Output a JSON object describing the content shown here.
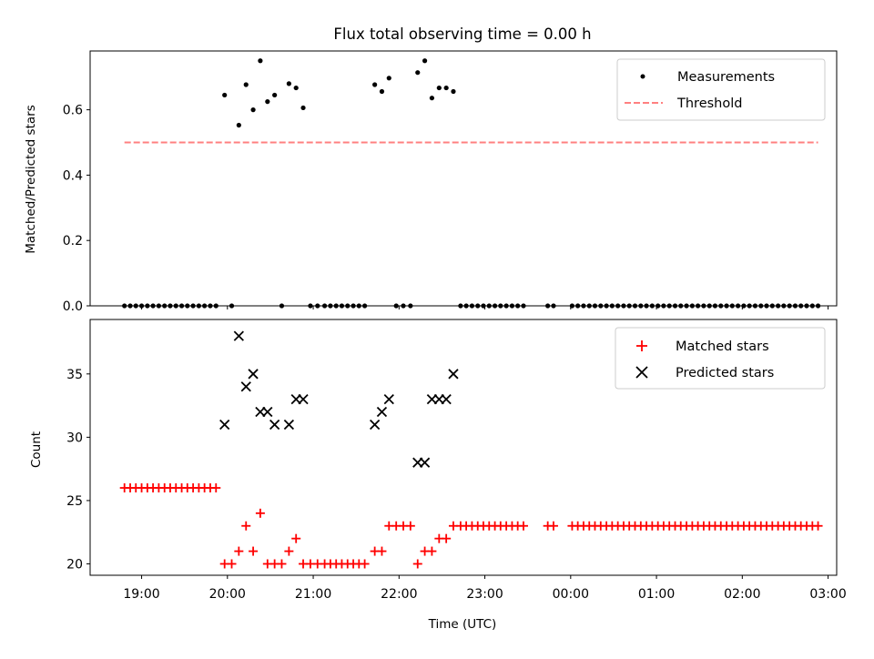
{
  "chart_data": [
    {
      "type": "scatter",
      "title": "Flux total observing time = 0.00 h",
      "ylabel": "Matched/Predicted stars",
      "ylim": [
        0,
        0.78
      ],
      "yticks": [
        0.0,
        0.2,
        0.4,
        0.6
      ],
      "ytick_labels": [
        "0.0",
        "0.2",
        "0.4",
        "0.6"
      ],
      "xlim": [
        -0.6,
        8.1
      ],
      "xticks": [
        0,
        1,
        2,
        3,
        4,
        5,
        6,
        7,
        8
      ],
      "legend": {
        "position": "top-right",
        "entries": [
          {
            "label": "Measurements",
            "marker": "dot",
            "color": "#000000"
          },
          {
            "label": "Threshold",
            "marker": "dashed-line",
            "color": "#ff8080"
          }
        ]
      },
      "series": [
        {
          "name": "Measurements",
          "color": "#000000",
          "marker": "dot",
          "points": [
            [
              -0.2,
              0
            ],
            [
              -0.133,
              0
            ],
            [
              -0.067,
              0
            ],
            [
              0,
              0
            ],
            [
              0.067,
              0
            ],
            [
              0.133,
              0
            ],
            [
              0.2,
              0
            ],
            [
              0.267,
              0
            ],
            [
              0.333,
              0
            ],
            [
              0.4,
              0
            ],
            [
              0.467,
              0
            ],
            [
              0.533,
              0
            ],
            [
              0.6,
              0
            ],
            [
              0.667,
              0
            ],
            [
              0.733,
              0
            ],
            [
              0.8,
              0
            ],
            [
              0.867,
              0
            ],
            [
              0.967,
              0.645
            ],
            [
              1.05,
              0
            ],
            [
              1.133,
              0.553
            ],
            [
              1.217,
              0.677
            ],
            [
              1.3,
              0.6
            ],
            [
              1.383,
              0.75
            ],
            [
              1.467,
              0.625
            ],
            [
              1.55,
              0.645
            ],
            [
              1.633,
              0
            ],
            [
              1.717,
              0.68
            ],
            [
              1.8,
              0.667
            ],
            [
              1.883,
              0.606
            ],
            [
              1.967,
              0
            ],
            [
              2.05,
              0
            ],
            [
              2.133,
              0
            ],
            [
              2.2,
              0
            ],
            [
              2.267,
              0
            ],
            [
              2.333,
              0
            ],
            [
              2.4,
              0
            ],
            [
              2.467,
              0
            ],
            [
              2.533,
              0
            ],
            [
              2.6,
              0
            ],
            [
              2.717,
              0.677
            ],
            [
              2.8,
              0.656
            ],
            [
              2.883,
              0.697
            ],
            [
              2.967,
              0
            ],
            [
              3.05,
              0
            ],
            [
              3.133,
              0
            ],
            [
              3.217,
              0.714
            ],
            [
              3.3,
              0.75
            ],
            [
              3.383,
              0.636
            ],
            [
              3.467,
              0.667
            ],
            [
              3.55,
              0.667
            ],
            [
              3.633,
              0.656
            ],
            [
              3.717,
              0
            ],
            [
              3.783,
              0
            ],
            [
              3.85,
              0
            ],
            [
              3.917,
              0
            ],
            [
              3.983,
              0
            ],
            [
              4.05,
              0
            ],
            [
              4.117,
              0
            ],
            [
              4.183,
              0
            ],
            [
              4.25,
              0
            ],
            [
              4.317,
              0
            ],
            [
              4.383,
              0
            ],
            [
              4.45,
              0
            ],
            [
              4.733,
              0
            ],
            [
              4.8,
              0
            ],
            [
              5.017,
              0
            ],
            [
              5.083,
              0
            ],
            [
              5.15,
              0
            ],
            [
              5.217,
              0
            ],
            [
              5.283,
              0
            ],
            [
              5.35,
              0
            ],
            [
              5.417,
              0
            ],
            [
              5.483,
              0
            ],
            [
              5.55,
              0
            ],
            [
              5.617,
              0
            ],
            [
              5.683,
              0
            ],
            [
              5.75,
              0
            ],
            [
              5.817,
              0
            ],
            [
              5.883,
              0
            ],
            [
              5.95,
              0
            ],
            [
              6.017,
              0
            ],
            [
              6.083,
              0
            ],
            [
              6.15,
              0
            ],
            [
              6.217,
              0
            ],
            [
              6.283,
              0
            ],
            [
              6.35,
              0
            ],
            [
              6.417,
              0
            ],
            [
              6.483,
              0
            ],
            [
              6.55,
              0
            ],
            [
              6.617,
              0
            ],
            [
              6.683,
              0
            ],
            [
              6.75,
              0
            ],
            [
              6.817,
              0
            ],
            [
              6.883,
              0
            ],
            [
              6.95,
              0
            ],
            [
              7.017,
              0
            ],
            [
              7.083,
              0
            ],
            [
              7.15,
              0
            ],
            [
              7.217,
              0
            ],
            [
              7.283,
              0
            ],
            [
              7.35,
              0
            ],
            [
              7.417,
              0
            ],
            [
              7.483,
              0
            ],
            [
              7.55,
              0
            ],
            [
              7.617,
              0
            ],
            [
              7.683,
              0
            ],
            [
              7.75,
              0
            ],
            [
              7.817,
              0
            ],
            [
              7.883,
              0
            ]
          ]
        },
        {
          "name": "Threshold",
          "color": "#ff8080",
          "style": "dashed",
          "x": [
            -0.2,
            7.883
          ],
          "y": [
            0.5,
            0.5
          ]
        }
      ]
    },
    {
      "type": "scatter",
      "xlabel": "Time (UTC)",
      "ylabel": "Count",
      "ylim": [
        19.1,
        39.3
      ],
      "yticks": [
        20,
        25,
        30,
        35
      ],
      "ytick_labels": [
        "20",
        "25",
        "30",
        "35"
      ],
      "xlim": [
        -0.6,
        8.1
      ],
      "xticks": [
        0,
        1,
        2,
        3,
        4,
        5,
        6,
        7,
        8
      ],
      "xtick_labels": [
        "19:00",
        "20:00",
        "21:00",
        "22:00",
        "23:00",
        "00:00",
        "01:00",
        "02:00",
        "03:00"
      ],
      "legend": {
        "position": "top-right",
        "entries": [
          {
            "label": "Matched stars",
            "marker": "plus",
            "color": "#ff0000"
          },
          {
            "label": "Predicted stars",
            "marker": "x",
            "color": "#000000"
          }
        ]
      },
      "series": [
        {
          "name": "Matched stars",
          "color": "#ff0000",
          "marker": "plus",
          "points": [
            [
              -0.2,
              26
            ],
            [
              -0.133,
              26
            ],
            [
              -0.067,
              26
            ],
            [
              0,
              26
            ],
            [
              0.067,
              26
            ],
            [
              0.133,
              26
            ],
            [
              0.2,
              26
            ],
            [
              0.267,
              26
            ],
            [
              0.333,
              26
            ],
            [
              0.4,
              26
            ],
            [
              0.467,
              26
            ],
            [
              0.533,
              26
            ],
            [
              0.6,
              26
            ],
            [
              0.667,
              26
            ],
            [
              0.733,
              26
            ],
            [
              0.8,
              26
            ],
            [
              0.867,
              26
            ],
            [
              0.967,
              20
            ],
            [
              1.05,
              20
            ],
            [
              1.133,
              21
            ],
            [
              1.217,
              23
            ],
            [
              1.3,
              21
            ],
            [
              1.383,
              24
            ],
            [
              1.467,
              20
            ],
            [
              1.55,
              20
            ],
            [
              1.633,
              20
            ],
            [
              1.717,
              21
            ],
            [
              1.8,
              22
            ],
            [
              1.883,
              20
            ],
            [
              1.967,
              20
            ],
            [
              2.05,
              20
            ],
            [
              2.133,
              20
            ],
            [
              2.2,
              20
            ],
            [
              2.267,
              20
            ],
            [
              2.333,
              20
            ],
            [
              2.4,
              20
            ],
            [
              2.467,
              20
            ],
            [
              2.533,
              20
            ],
            [
              2.6,
              20
            ],
            [
              2.717,
              21
            ],
            [
              2.8,
              21
            ],
            [
              2.883,
              23
            ],
            [
              2.967,
              23
            ],
            [
              3.05,
              23
            ],
            [
              3.133,
              23
            ],
            [
              3.217,
              20
            ],
            [
              3.3,
              21
            ],
            [
              3.383,
              21
            ],
            [
              3.467,
              22
            ],
            [
              3.55,
              22
            ],
            [
              3.633,
              23
            ],
            [
              3.717,
              23
            ],
            [
              3.783,
              23
            ],
            [
              3.85,
              23
            ],
            [
              3.917,
              23
            ],
            [
              3.983,
              23
            ],
            [
              4.05,
              23
            ],
            [
              4.117,
              23
            ],
            [
              4.183,
              23
            ],
            [
              4.25,
              23
            ],
            [
              4.317,
              23
            ],
            [
              4.383,
              23
            ],
            [
              4.45,
              23
            ],
            [
              4.733,
              23
            ],
            [
              4.8,
              23
            ],
            [
              5.017,
              23
            ],
            [
              5.083,
              23
            ],
            [
              5.15,
              23
            ],
            [
              5.217,
              23
            ],
            [
              5.283,
              23
            ],
            [
              5.35,
              23
            ],
            [
              5.417,
              23
            ],
            [
              5.483,
              23
            ],
            [
              5.55,
              23
            ],
            [
              5.617,
              23
            ],
            [
              5.683,
              23
            ],
            [
              5.75,
              23
            ],
            [
              5.817,
              23
            ],
            [
              5.883,
              23
            ],
            [
              5.95,
              23
            ],
            [
              6.017,
              23
            ],
            [
              6.083,
              23
            ],
            [
              6.15,
              23
            ],
            [
              6.217,
              23
            ],
            [
              6.283,
              23
            ],
            [
              6.35,
              23
            ],
            [
              6.417,
              23
            ],
            [
              6.483,
              23
            ],
            [
              6.55,
              23
            ],
            [
              6.617,
              23
            ],
            [
              6.683,
              23
            ],
            [
              6.75,
              23
            ],
            [
              6.817,
              23
            ],
            [
              6.883,
              23
            ],
            [
              6.95,
              23
            ],
            [
              7.017,
              23
            ],
            [
              7.083,
              23
            ],
            [
              7.15,
              23
            ],
            [
              7.217,
              23
            ],
            [
              7.283,
              23
            ],
            [
              7.35,
              23
            ],
            [
              7.417,
              23
            ],
            [
              7.483,
              23
            ],
            [
              7.55,
              23
            ],
            [
              7.617,
              23
            ],
            [
              7.683,
              23
            ],
            [
              7.75,
              23
            ],
            [
              7.817,
              23
            ],
            [
              7.883,
              23
            ]
          ]
        },
        {
          "name": "Predicted stars",
          "color": "#000000",
          "marker": "x",
          "points": [
            [
              0.967,
              31
            ],
            [
              1.133,
              38
            ],
            [
              1.217,
              34
            ],
            [
              1.3,
              35
            ],
            [
              1.383,
              32
            ],
            [
              1.467,
              32
            ],
            [
              1.55,
              31
            ],
            [
              1.717,
              31
            ],
            [
              1.8,
              33
            ],
            [
              1.883,
              33
            ],
            [
              2.717,
              31
            ],
            [
              2.8,
              32
            ],
            [
              2.883,
              33
            ],
            [
              3.217,
              28
            ],
            [
              3.3,
              28
            ],
            [
              3.383,
              33
            ],
            [
              3.467,
              33
            ],
            [
              3.55,
              33
            ],
            [
              3.633,
              35
            ]
          ]
        }
      ]
    }
  ]
}
